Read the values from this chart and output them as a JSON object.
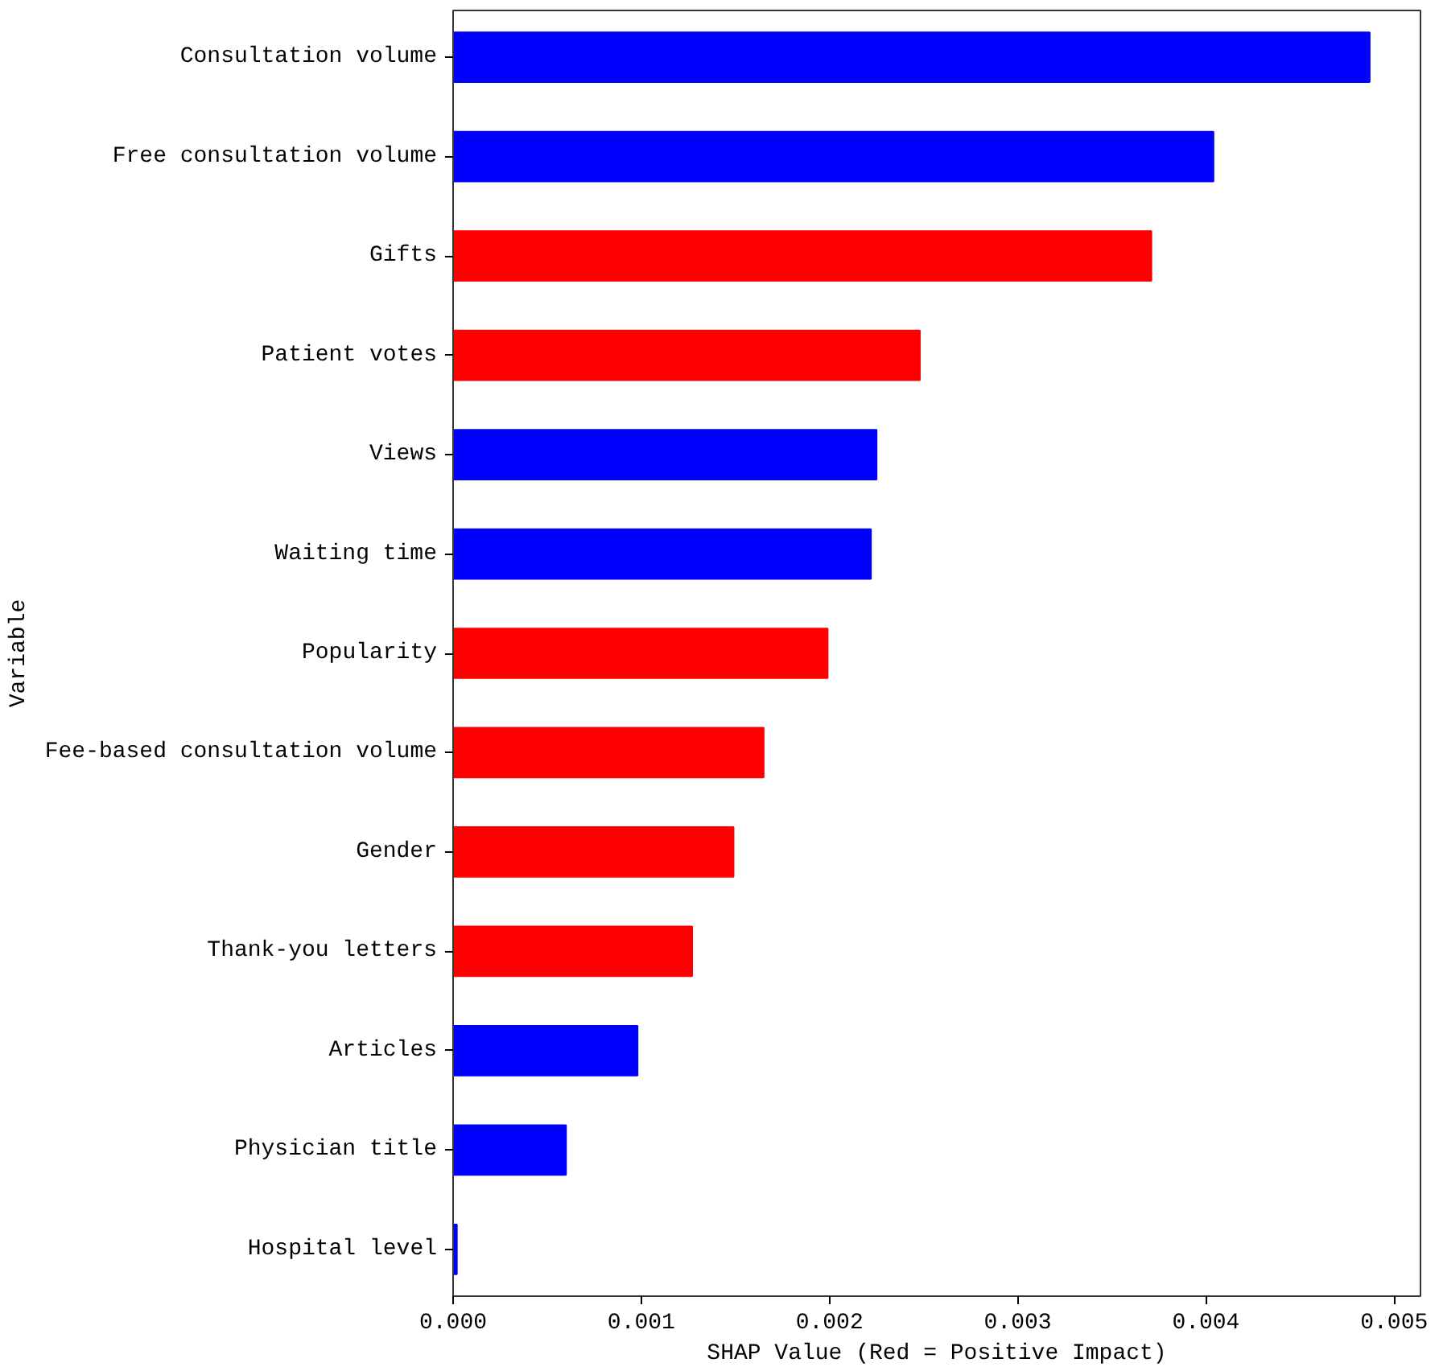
{
  "chart_data": {
    "type": "bar",
    "orientation": "horizontal",
    "xlabel": "SHAP Value (Red = Positive Impact)",
    "ylabel": "Variable",
    "categories": [
      "Consultation volume",
      "Free consultation volume",
      "Gifts",
      "Patient votes",
      "Views",
      "Waiting time",
      "Popularity",
      "Fee-based consultation volume",
      "Gender",
      "Thank-you letters",
      "Articles",
      "Physician title",
      "Hospital level"
    ],
    "values": [
      0.00487,
      0.00404,
      0.00371,
      0.00248,
      0.00225,
      0.00222,
      0.00199,
      0.00165,
      0.00149,
      0.00127,
      0.00098,
      0.0006,
      2e-05
    ],
    "colors": [
      "#0000ff",
      "#0000ff",
      "#ff0000",
      "#ff0000",
      "#0000ff",
      "#0000ff",
      "#ff0000",
      "#ff0000",
      "#ff0000",
      "#ff0000",
      "#0000ff",
      "#0000ff",
      "#0000ff"
    ],
    "xlim": [
      0,
      0.00514
    ],
    "xticks": [
      {
        "value": 0,
        "label": "0.000"
      },
      {
        "value": 0.001,
        "label": "0.001"
      },
      {
        "value": 0.002,
        "label": "0.002"
      },
      {
        "value": 0.003,
        "label": "0.003"
      },
      {
        "value": 0.004,
        "label": "0.004"
      },
      {
        "value": 0.005,
        "label": "0.005"
      }
    ],
    "grid": false
  }
}
